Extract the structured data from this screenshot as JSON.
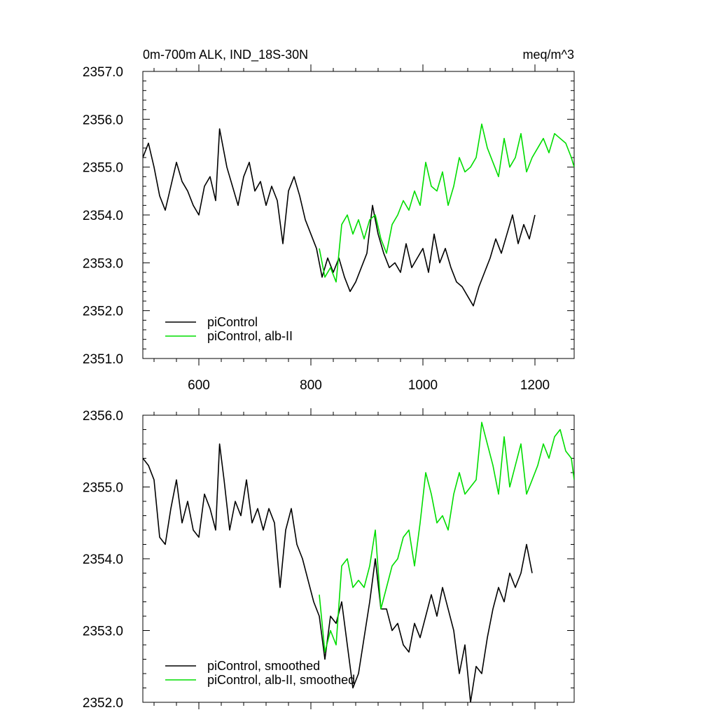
{
  "chart_data": [
    {
      "type": "line",
      "title": "0m-700m ALK, IND_18S-30N",
      "units": "meq/m^3",
      "xlabel": "",
      "ylabel": "",
      "xlim": [
        500,
        1270
      ],
      "ylim": [
        2351.0,
        2357.0
      ],
      "x_ticks": [
        600,
        800,
        1000,
        1200
      ],
      "x_tick_labels": [
        "600",
        "800",
        "1000",
        "1200"
      ],
      "y_ticks": [
        2351,
        2352,
        2353,
        2354,
        2355,
        2356,
        2357
      ],
      "y_tick_labels": [
        "2351.0",
        "2352.0",
        "2353.0",
        "2354.0",
        "2355.0",
        "2356.0",
        "2357.0"
      ],
      "grid": false,
      "legend_position": "bottom-left",
      "series": [
        {
          "name": "piControl",
          "color": "#000000",
          "x": [
            500,
            510,
            520,
            530,
            540,
            550,
            560,
            570,
            580,
            590,
            600,
            610,
            620,
            630,
            637,
            650,
            660,
            670,
            680,
            690,
            700,
            710,
            720,
            730,
            740,
            750,
            760,
            770,
            780,
            790,
            800,
            810,
            820,
            830,
            840,
            850,
            860,
            870,
            880,
            890,
            900,
            910,
            920,
            930,
            940,
            950,
            960,
            970,
            980,
            990,
            1000,
            1010,
            1020,
            1030,
            1040,
            1050,
            1060,
            1070,
            1080,
            1090,
            1100,
            1110,
            1120,
            1130,
            1140,
            1150,
            1160,
            1170,
            1180,
            1190,
            1200
          ],
          "values": [
            2355.2,
            2355.5,
            2355.0,
            2354.4,
            2354.1,
            2354.6,
            2355.1,
            2354.7,
            2354.5,
            2354.2,
            2354.0,
            2354.6,
            2354.8,
            2354.3,
            2355.8,
            2355.0,
            2354.6,
            2354.2,
            2354.8,
            2355.1,
            2354.5,
            2354.7,
            2354.2,
            2354.6,
            2354.3,
            2353.4,
            2354.5,
            2354.8,
            2354.4,
            2353.9,
            2353.6,
            2353.3,
            2352.7,
            2353.1,
            2352.8,
            2353.1,
            2352.7,
            2352.4,
            2352.6,
            2352.9,
            2353.2,
            2354.2,
            2353.6,
            2353.2,
            2352.9,
            2353.0,
            2352.8,
            2353.4,
            2352.9,
            2353.1,
            2353.3,
            2352.8,
            2353.6,
            2353.0,
            2353.3,
            2352.9,
            2352.6,
            2352.5,
            2352.3,
            2352.1,
            2352.5,
            2352.8,
            2353.1,
            2353.5,
            2353.2,
            2353.6,
            2354.0,
            2353.4,
            2353.8,
            2353.5,
            2354.0
          ]
        },
        {
          "name": "piControl, alb-II",
          "color": "#00dd00",
          "x": [
            815,
            825,
            835,
            845,
            855,
            865,
            875,
            885,
            895,
            905,
            915,
            925,
            935,
            945,
            955,
            965,
            975,
            985,
            995,
            1005,
            1015,
            1025,
            1035,
            1045,
            1055,
            1065,
            1075,
            1085,
            1095,
            1105,
            1115,
            1125,
            1135,
            1145,
            1155,
            1165,
            1175,
            1185,
            1195,
            1205,
            1215,
            1225,
            1235,
            1245,
            1255,
            1265,
            1270
          ],
          "values": [
            2353.3,
            2352.7,
            2352.9,
            2352.6,
            2353.8,
            2354.0,
            2353.6,
            2353.9,
            2353.5,
            2353.9,
            2354.0,
            2353.5,
            2353.2,
            2353.8,
            2354.0,
            2354.3,
            2354.1,
            2354.5,
            2354.2,
            2355.1,
            2354.6,
            2354.5,
            2354.9,
            2354.2,
            2354.6,
            2355.2,
            2354.9,
            2355.0,
            2355.2,
            2355.9,
            2355.4,
            2355.1,
            2354.8,
            2355.6,
            2355.0,
            2355.2,
            2355.7,
            2354.9,
            2355.2,
            2355.4,
            2355.6,
            2355.3,
            2355.7,
            2355.6,
            2355.5,
            2355.2,
            2355.0
          ]
        }
      ]
    },
    {
      "type": "line",
      "title": "",
      "xlabel": "",
      "ylabel": "",
      "xlim": [
        500,
        1270
      ],
      "ylim": [
        2352.0,
        2356.0
      ],
      "x_ticks": [
        600,
        800,
        1000,
        1200
      ],
      "x_tick_labels": [],
      "y_ticks": [
        2352,
        2353,
        2354,
        2355,
        2356
      ],
      "y_tick_labels": [
        "2352.0",
        "2353.0",
        "2354.0",
        "2355.0",
        "2356.0"
      ],
      "grid": false,
      "legend_position": "bottom-left",
      "series": [
        {
          "name": "piControl, smoothed",
          "color": "#000000",
          "x": [
            500,
            510,
            520,
            530,
            540,
            550,
            560,
            570,
            580,
            590,
            600,
            610,
            620,
            630,
            637,
            645,
            655,
            665,
            675,
            685,
            695,
            705,
            715,
            725,
            735,
            745,
            755,
            765,
            775,
            785,
            795,
            805,
            815,
            825,
            835,
            845,
            855,
            865,
            875,
            885,
            895,
            905,
            915,
            925,
            935,
            945,
            955,
            965,
            975,
            985,
            995,
            1005,
            1015,
            1025,
            1035,
            1045,
            1055,
            1065,
            1075,
            1085,
            1095,
            1105,
            1115,
            1125,
            1135,
            1145,
            1155,
            1165,
            1175,
            1185,
            1195
          ],
          "values": [
            2355.4,
            2355.3,
            2355.1,
            2354.3,
            2354.2,
            2354.7,
            2355.1,
            2354.5,
            2354.8,
            2354.4,
            2354.3,
            2354.9,
            2354.7,
            2354.4,
            2355.6,
            2355.1,
            2354.4,
            2354.8,
            2354.6,
            2355.1,
            2354.5,
            2354.7,
            2354.4,
            2354.7,
            2354.5,
            2353.6,
            2354.4,
            2354.7,
            2354.2,
            2354.0,
            2353.7,
            2353.4,
            2353.2,
            2352.6,
            2353.2,
            2353.1,
            2353.4,
            2352.8,
            2352.2,
            2352.4,
            2352.9,
            2353.4,
            2354.0,
            2353.3,
            2353.3,
            2353.0,
            2353.1,
            2352.8,
            2352.7,
            2353.1,
            2352.9,
            2353.2,
            2353.5,
            2353.2,
            2353.6,
            2353.3,
            2353.0,
            2352.4,
            2352.8,
            2352.0,
            2352.5,
            2352.4,
            2352.9,
            2353.3,
            2353.6,
            2353.4,
            2353.8,
            2353.6,
            2353.8,
            2354.2,
            2353.8
          ]
        },
        {
          "name": "piControl, alb-II, smoothed",
          "color": "#00dd00",
          "x": [
            815,
            825,
            835,
            845,
            855,
            865,
            875,
            885,
            895,
            905,
            915,
            925,
            935,
            945,
            955,
            965,
            975,
            985,
            995,
            1005,
            1015,
            1025,
            1035,
            1045,
            1055,
            1065,
            1075,
            1085,
            1095,
            1105,
            1115,
            1125,
            1135,
            1145,
            1155,
            1165,
            1175,
            1185,
            1195,
            1205,
            1215,
            1225,
            1235,
            1245,
            1255,
            1265,
            1270
          ],
          "values": [
            2353.5,
            2352.7,
            2353.0,
            2352.8,
            2353.9,
            2354.0,
            2353.6,
            2353.7,
            2353.6,
            2353.9,
            2354.4,
            2353.3,
            2353.6,
            2353.9,
            2354.0,
            2354.3,
            2354.4,
            2353.9,
            2354.5,
            2355.2,
            2354.9,
            2354.5,
            2354.6,
            2354.4,
            2354.9,
            2355.2,
            2354.9,
            2355.0,
            2355.1,
            2355.9,
            2355.6,
            2355.3,
            2354.9,
            2355.7,
            2355.0,
            2355.3,
            2355.6,
            2354.9,
            2355.1,
            2355.3,
            2355.6,
            2355.4,
            2355.7,
            2355.8,
            2355.5,
            2355.4,
            2355.1
          ]
        }
      ]
    }
  ]
}
